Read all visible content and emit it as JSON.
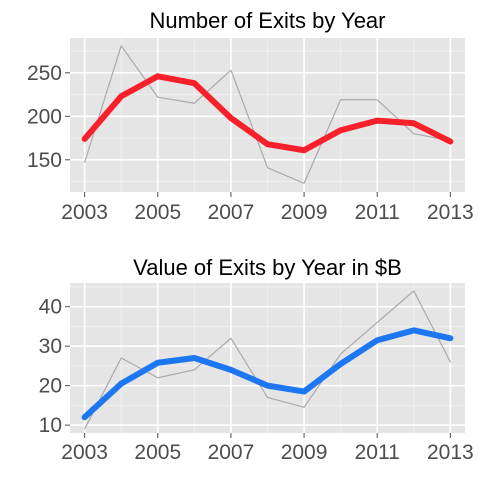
{
  "chart_data": [
    {
      "type": "line",
      "title": "Number of Exits by Year",
      "xlabel": "",
      "ylabel": "",
      "x": [
        2003,
        2004,
        2005,
        2006,
        2007,
        2008,
        2009,
        2010,
        2011,
        2012,
        2013
      ],
      "x_ticks": [
        2003,
        2005,
        2007,
        2009,
        2011,
        2013
      ],
      "y_ticks": [
        150,
        200,
        250
      ],
      "xlim": [
        2002.6,
        2013.4
      ],
      "ylim": [
        113,
        290
      ],
      "grid": true,
      "series": [
        {
          "role": "raw",
          "color": "#aaaaaa",
          "values": [
            147,
            281,
            222,
            215,
            253,
            141,
            123,
            219,
            219,
            180,
            172
          ]
        },
        {
          "role": "smoothed",
          "color": "#f8202a",
          "values": [
            174,
            223,
            246,
            238,
            198,
            168,
            161,
            184,
            195,
            192,
            171
          ]
        }
      ]
    },
    {
      "type": "line",
      "title": "Value of Exits by Year in $B",
      "xlabel": "",
      "ylabel": "",
      "x": [
        2003,
        2004,
        2005,
        2006,
        2007,
        2008,
        2009,
        2010,
        2011,
        2012,
        2013
      ],
      "x_ticks": [
        2003,
        2005,
        2007,
        2009,
        2011,
        2013
      ],
      "y_ticks": [
        10,
        20,
        30,
        40
      ],
      "xlim": [
        2002.6,
        2013.4
      ],
      "ylim": [
        8,
        46
      ],
      "grid": true,
      "series": [
        {
          "role": "raw",
          "color": "#aaaaaa",
          "values": [
            9,
            27,
            22,
            24,
            32,
            17,
            14.5,
            28,
            36,
            44,
            26
          ]
        },
        {
          "role": "smoothed",
          "color": "#1d77f2",
          "values": [
            12,
            20.5,
            25.8,
            27,
            24,
            20,
            18.5,
            25.5,
            31.5,
            34,
            32
          ]
        }
      ]
    }
  ]
}
